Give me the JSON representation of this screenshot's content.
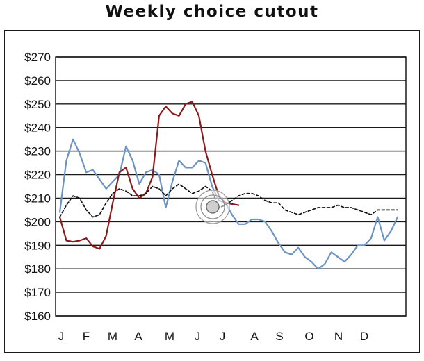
{
  "title": "Weekly choice cutout",
  "chart_data": {
    "type": "line",
    "title": "Weekly choice cutout",
    "xlabel": "",
    "ylabel": "",
    "x_unit": "week",
    "x_range": [
      1,
      52
    ],
    "ylim": [
      160,
      270
    ],
    "y_ticks": [
      160,
      170,
      180,
      190,
      200,
      210,
      220,
      230,
      240,
      250,
      260,
      270
    ],
    "y_tick_labels": [
      "$160",
      "$170",
      "$180",
      "$190",
      "$200",
      "$210",
      "$220",
      "$230",
      "$240",
      "$250",
      "$260",
      "$270"
    ],
    "x_tick_labels": [
      "J",
      "F",
      "M",
      "A",
      "M",
      "J",
      "J",
      "A",
      "S",
      "O",
      "N",
      "D"
    ],
    "grid": "horizontal",
    "legend": "none",
    "series": [
      {
        "color": "#8b1a1a",
        "style": "solid",
        "x": [
          1,
          2,
          3,
          4,
          5,
          6,
          7,
          8,
          9,
          10,
          11,
          12,
          13,
          14,
          15,
          16,
          17,
          18,
          19,
          20,
          21,
          22,
          23,
          24,
          25,
          26,
          27,
          28
        ],
        "y": [
          202,
          192,
          191.5,
          192,
          193,
          189.5,
          188.5,
          194,
          208,
          221,
          223,
          214,
          210,
          212,
          219,
          245,
          249,
          246,
          245,
          250,
          251,
          245,
          230,
          220,
          211,
          208,
          207.5,
          207
        ]
      },
      {
        "color": "#6b93c3",
        "style": "solid",
        "x": [
          1,
          2,
          3,
          4,
          5,
          6,
          7,
          8,
          9,
          10,
          11,
          12,
          13,
          14,
          15,
          16,
          17,
          18,
          19,
          20,
          21,
          22,
          23,
          24,
          25,
          26,
          27,
          28,
          29,
          30,
          31,
          32,
          33,
          34,
          35,
          36,
          37,
          38,
          39,
          40,
          41,
          42,
          43,
          44,
          45,
          46,
          47,
          48,
          49,
          50,
          51,
          52
        ],
        "y": [
          204,
          226,
          235,
          229,
          221,
          222,
          218,
          214,
          217,
          220,
          232,
          226,
          216,
          221,
          222,
          220,
          206,
          217,
          226,
          223,
          223,
          226,
          225,
          215,
          209,
          208,
          203,
          199,
          199,
          201,
          201,
          200,
          196,
          191,
          187,
          186,
          189,
          185,
          183,
          180,
          182,
          187,
          185,
          183,
          186,
          190,
          190,
          193,
          202,
          192,
          196,
          202
        ]
      },
      {
        "color": "#111111",
        "style": "dashed",
        "x": [
          1,
          2,
          3,
          4,
          5,
          6,
          7,
          8,
          9,
          10,
          11,
          12,
          13,
          14,
          15,
          16,
          17,
          18,
          19,
          20,
          21,
          22,
          23,
          24,
          25,
          26,
          27,
          28,
          29,
          30,
          31,
          32,
          33,
          34,
          35,
          36,
          37,
          38,
          39,
          40,
          41,
          42,
          43,
          44,
          45,
          46,
          47,
          48,
          49,
          50,
          51,
          52
        ],
        "y": [
          202,
          207,
          211,
          210,
          205,
          202,
          203,
          208,
          212,
          214,
          213,
          211,
          211,
          212,
          215,
          214,
          211,
          214,
          216,
          214,
          212,
          213,
          215,
          213,
          206,
          207,
          209,
          211,
          212,
          212,
          211,
          209,
          208,
          208,
          205,
          204,
          203,
          204,
          205,
          206,
          206,
          206,
          207,
          206,
          206,
          205,
          204,
          203,
          205,
          205,
          205,
          205
        ]
      }
    ]
  }
}
